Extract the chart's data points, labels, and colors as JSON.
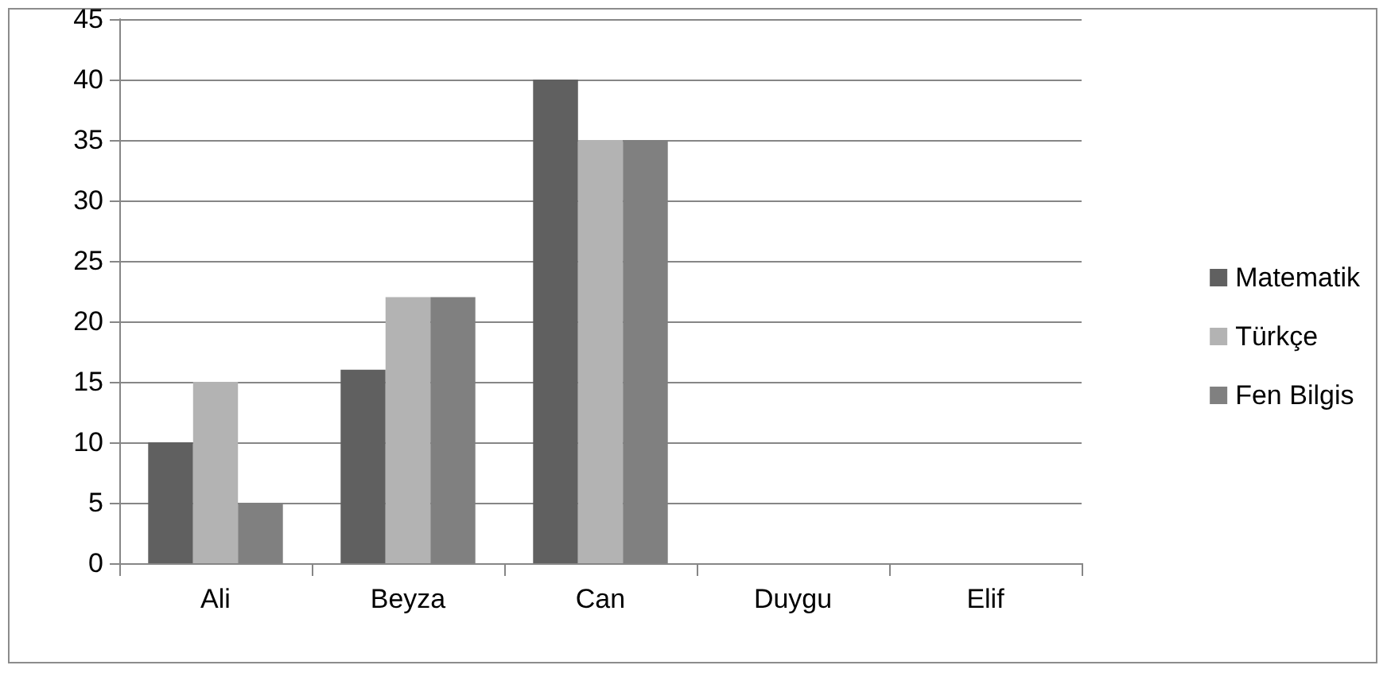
{
  "chart_data": {
    "type": "bar",
    "categories": [
      "Ali",
      "Beyza",
      "Can",
      "Duygu",
      "Elif"
    ],
    "series": [
      {
        "name": "Matematik",
        "color": "#606060",
        "values": [
          10,
          16,
          40,
          null,
          null
        ]
      },
      {
        "name": "Türkçe",
        "color": "#b3b3b3",
        "values": [
          15,
          22,
          35,
          null,
          null
        ]
      },
      {
        "name": "Fen Bilgis",
        "color": "#808080",
        "values": [
          5,
          22,
          35,
          null,
          null
        ]
      }
    ],
    "ylim": [
      0,
      45
    ],
    "yticks": [
      0,
      5,
      10,
      15,
      20,
      25,
      30,
      35,
      40,
      45
    ],
    "grid": "y",
    "legend": "right"
  }
}
